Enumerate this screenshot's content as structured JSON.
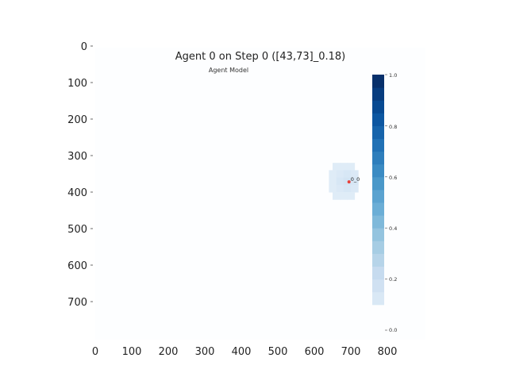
{
  "chart_data": {
    "type": "heatmap",
    "title": "Agent 0 on Step 0 ([43,73]_0.18)",
    "subtitle": "Agent Model",
    "xlim": [
      0,
      800
    ],
    "ylim": [
      0,
      800
    ],
    "y_inverted": true,
    "x_ticks": [
      "0",
      "100",
      "200",
      "300",
      "400",
      "500",
      "600",
      "700",
      "800"
    ],
    "y_ticks": [
      "0",
      "100",
      "200",
      "300",
      "400",
      "500",
      "600",
      "700"
    ],
    "grid": false,
    "colorbar": {
      "colormap": "Blues",
      "range": [
        0.0,
        1.0
      ],
      "ticks": [
        "0.0",
        "0.2",
        "0.4",
        "0.6",
        "0.8",
        "1.0"
      ],
      "placement": "right"
    },
    "cells": [
      {
        "x": 650,
        "y": 320,
        "value": 0.12
      },
      {
        "x": 670,
        "y": 320,
        "value": 0.12
      },
      {
        "x": 690,
        "y": 320,
        "value": 0.12
      },
      {
        "x": 640,
        "y": 340,
        "value": 0.12
      },
      {
        "x": 660,
        "y": 340,
        "value": 0.14
      },
      {
        "x": 680,
        "y": 340,
        "value": 0.16
      },
      {
        "x": 700,
        "y": 340,
        "value": 0.14
      },
      {
        "x": 640,
        "y": 360,
        "value": 0.12
      },
      {
        "x": 660,
        "y": 360,
        "value": 0.16
      },
      {
        "x": 680,
        "y": 360,
        "value": 0.18
      },
      {
        "x": 700,
        "y": 360,
        "value": 0.16
      },
      {
        "x": 640,
        "y": 380,
        "value": 0.12
      },
      {
        "x": 660,
        "y": 380,
        "value": 0.14
      },
      {
        "x": 680,
        "y": 380,
        "value": 0.16
      },
      {
        "x": 700,
        "y": 380,
        "value": 0.14
      },
      {
        "x": 650,
        "y": 400,
        "value": 0.12
      },
      {
        "x": 670,
        "y": 400,
        "value": 0.12
      },
      {
        "x": 690,
        "y": 400,
        "value": 0.12
      }
    ],
    "agent": {
      "label": "0_0",
      "x": 695,
      "y": 372,
      "color": "#e8413a"
    }
  }
}
